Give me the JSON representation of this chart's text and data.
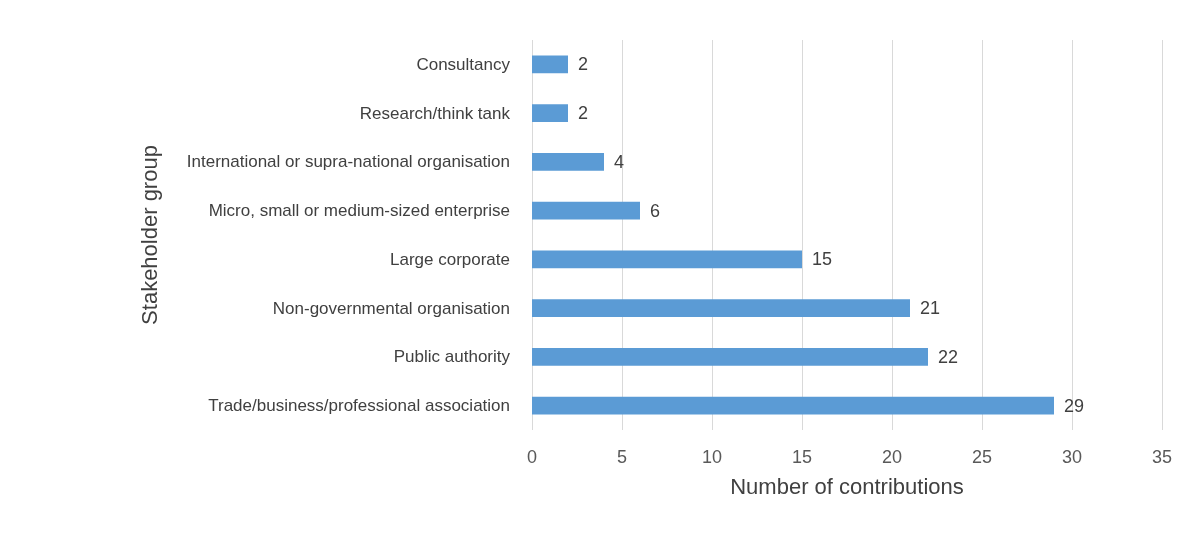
{
  "chart_data": {
    "type": "bar",
    "orientation": "horizontal",
    "xlabel": "Number of contributions",
    "ylabel": "Stakeholder group",
    "categories": [
      "Consultancy",
      "Research/think tank",
      "International or supra-national organisation",
      "Micro, small or medium-sized enterprise",
      "Large corporate",
      "Non-governmental organisation",
      "Public authority",
      "Trade/business/professional association"
    ],
    "values": [
      2,
      2,
      4,
      6,
      15,
      21,
      22,
      29
    ],
    "color": "#5b9bd5",
    "xlim": [
      0,
      35
    ],
    "xticks": [
      0,
      5,
      10,
      15,
      20,
      25,
      30,
      35
    ],
    "grid": "x",
    "data_labels": true
  }
}
